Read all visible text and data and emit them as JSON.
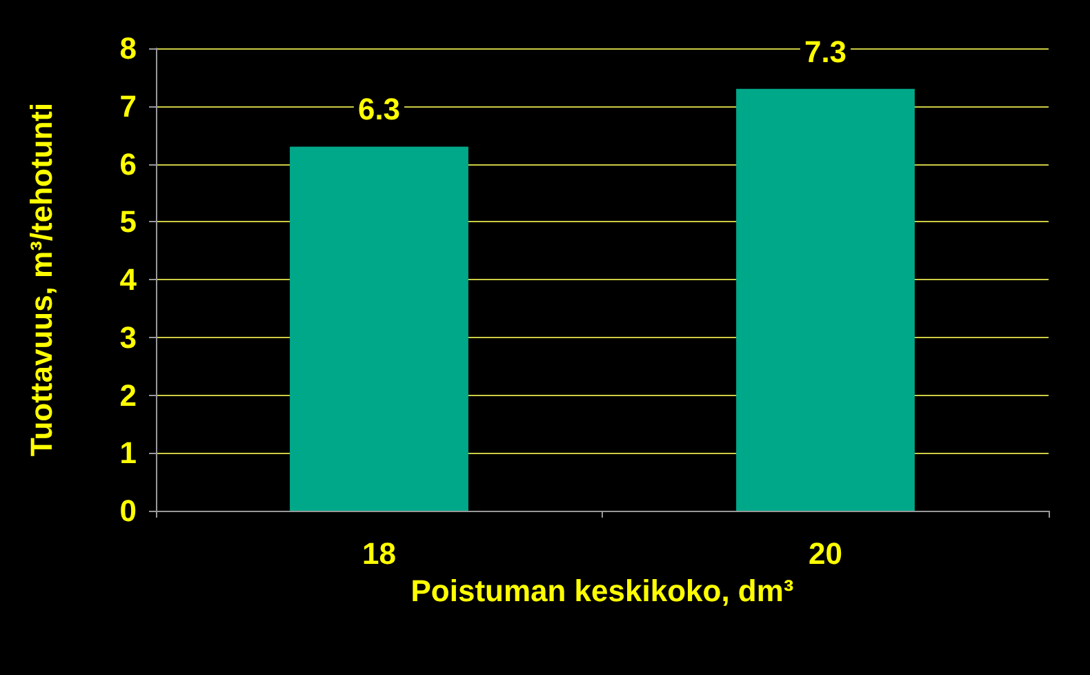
{
  "chart_data": {
    "type": "bar",
    "xlabel": "Poistuman keskikoko, dm³",
    "ylabel": "Tuottavuus, m³/tehotunti",
    "categories": [
      "18",
      "20"
    ],
    "values": [
      6.3,
      7.3
    ],
    "color": "#00a88a",
    "ylim": [
      0,
      8
    ],
    "yticks": [
      0,
      1,
      2,
      3,
      4,
      5,
      6,
      7,
      8
    ],
    "grid": "y",
    "data_labels": true
  }
}
